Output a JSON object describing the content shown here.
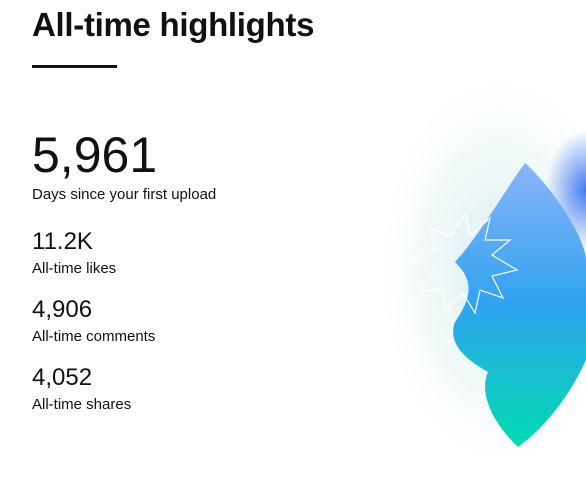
{
  "header": {
    "title": "All-time highlights"
  },
  "stats": [
    {
      "value": "5,961",
      "label": "Days since your first upload"
    },
    {
      "value": "11.2K",
      "label": "All-time likes"
    },
    {
      "value": "4,906",
      "label": "All-time comments"
    },
    {
      "value": "4,052",
      "label": "All-time shares"
    }
  ]
}
